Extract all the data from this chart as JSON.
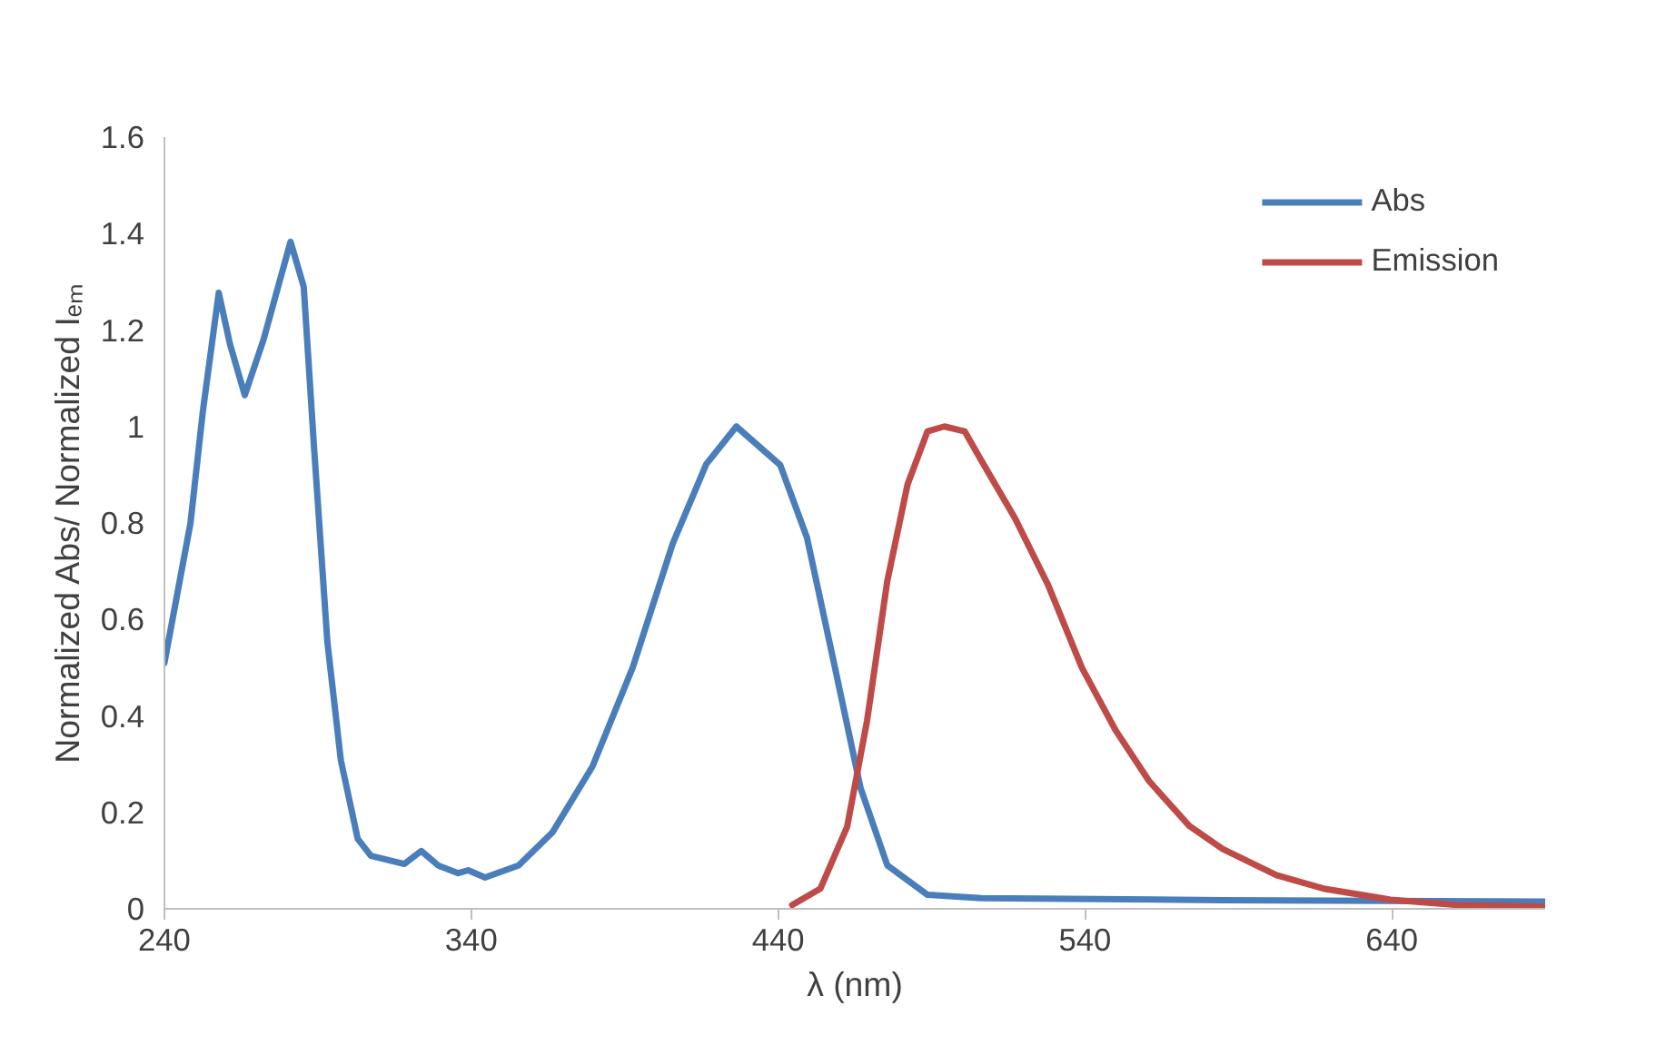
{
  "chart_data": {
    "type": "line",
    "xlabel": "λ (nm)",
    "ylabel": "Normalized Abs/ Normalized Iₑₘ",
    "xlim": [
      240,
      690
    ],
    "xticks": [
      240,
      340,
      440,
      540,
      640
    ],
    "ylim": [
      0,
      1.6
    ],
    "yticks": [
      0,
      0.2,
      0.4,
      0.6,
      0.8,
      1,
      1.2,
      1.4,
      1.6
    ],
    "grid": false,
    "legend": "top right",
    "marker": "none",
    "line_style": "solid",
    "series": [
      {
        "name": "Abs",
        "color": "#4a7ebb",
        "x": [
          240,
          248.5,
          252.5,
          257.7,
          261.4,
          266.2,
          272.3,
          281.1,
          285.4,
          288.7,
          293.1,
          297.5,
          303,
          307.3,
          318.2,
          323.7,
          329.2,
          335.7,
          339,
          344.5,
          355.4,
          366.4,
          379.5,
          392.6,
          405.7,
          416.6,
          426.4,
          440.7,
          449.4,
          458.2,
          466.9,
          475.6,
          488.7,
          506.2,
          584.9,
          690
        ],
        "values": [
          0.51,
          0.8,
          1.03,
          1.277,
          1.17,
          1.065,
          1.18,
          1.383,
          1.29,
          0.963,
          0.554,
          0.308,
          0.145,
          0.11,
          0.093,
          0.12,
          0.09,
          0.074,
          0.08,
          0.065,
          0.09,
          0.158,
          0.295,
          0.5,
          0.758,
          0.922,
          1.0,
          0.92,
          0.77,
          0.51,
          0.25,
          0.09,
          0.029,
          0.022,
          0.018,
          0.015
        ]
      },
      {
        "name": "Emission",
        "color": "#be4b48",
        "x": [
          444.6,
          453.8,
          462.5,
          469,
          475.6,
          482.2,
          488.7,
          494.2,
          500.8,
          506.2,
          517.2,
          528.1,
          539,
          550,
          560.9,
          574,
          584.9,
          602.4,
          617.7,
          639.6,
          661.4,
          690
        ],
        "values": [
          0.008,
          0.042,
          0.17,
          0.39,
          0.68,
          0.88,
          0.99,
          1.0,
          0.99,
          0.93,
          0.81,
          0.67,
          0.5,
          0.37,
          0.265,
          0.172,
          0.124,
          0.07,
          0.042,
          0.019,
          0.008,
          0.004
        ]
      }
    ]
  }
}
